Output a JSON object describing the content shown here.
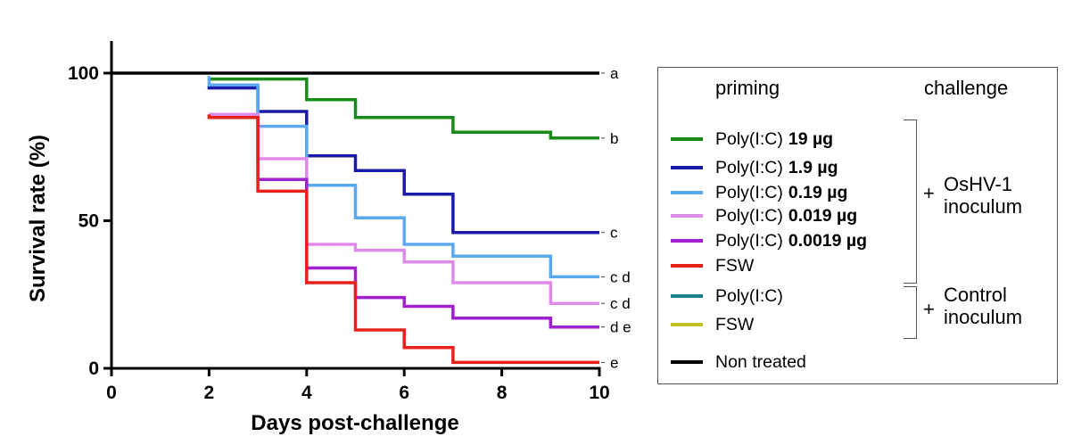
{
  "chart_data": {
    "type": "line",
    "step": true,
    "title": "",
    "xlabel": "Days post-challenge",
    "ylabel": "Survival rate (%)",
    "xlim": [
      0,
      10
    ],
    "ylim": [
      0,
      100
    ],
    "x_ticks": [
      "0",
      "2",
      "4",
      "6",
      "8",
      "10"
    ],
    "y_ticks": [
      "0",
      "50",
      "100"
    ],
    "grid": false,
    "legend_position": "right",
    "series": [
      {
        "color": "#000000",
        "group_letter": "a",
        "steps": [
          [
            0,
            100
          ],
          [
            10,
            100
          ]
        ]
      },
      {
        "color": "#1a8a1a",
        "group_letter": "b",
        "steps": [
          [
            2,
            98
          ],
          [
            4,
            98
          ],
          [
            4,
            91
          ],
          [
            5,
            91
          ],
          [
            5,
            85
          ],
          [
            7,
            85
          ],
          [
            7,
            80
          ],
          [
            9,
            80
          ],
          [
            9,
            78
          ],
          [
            10,
            78
          ]
        ]
      },
      {
        "color": "#1a1aa8",
        "group_letter": "c",
        "steps": [
          [
            2,
            96
          ],
          [
            2,
            95
          ],
          [
            3,
            95
          ],
          [
            3,
            87
          ],
          [
            4,
            87
          ],
          [
            4,
            72
          ],
          [
            5,
            72
          ],
          [
            5,
            67
          ],
          [
            6,
            67
          ],
          [
            6,
            59
          ],
          [
            7,
            59
          ],
          [
            7,
            46
          ],
          [
            10,
            46
          ]
        ]
      },
      {
        "color": "#5aa8f0",
        "group_letter": "c d",
        "steps": [
          [
            2,
            99
          ],
          [
            2,
            96
          ],
          [
            3,
            96
          ],
          [
            3,
            82
          ],
          [
            4,
            82
          ],
          [
            4,
            62
          ],
          [
            5,
            62
          ],
          [
            5,
            51
          ],
          [
            6,
            51
          ],
          [
            6,
            42
          ],
          [
            7,
            42
          ],
          [
            7,
            38
          ],
          [
            9,
            38
          ],
          [
            9,
            31
          ],
          [
            10,
            31
          ]
        ]
      },
      {
        "color": "#e08ae8",
        "group_letter": "c d",
        "steps": [
          [
            2,
            86
          ],
          [
            3,
            86
          ],
          [
            3,
            71
          ],
          [
            4,
            71
          ],
          [
            4,
            42
          ],
          [
            5,
            42
          ],
          [
            5,
            40
          ],
          [
            6,
            40
          ],
          [
            6,
            36
          ],
          [
            7,
            36
          ],
          [
            7,
            29
          ],
          [
            9,
            29
          ],
          [
            9,
            22
          ],
          [
            10,
            22
          ]
        ]
      },
      {
        "color": "#a020d0",
        "group_letter": "d e",
        "steps": [
          [
            2,
            85
          ],
          [
            3,
            85
          ],
          [
            3,
            64
          ],
          [
            4,
            64
          ],
          [
            4,
            34
          ],
          [
            5,
            34
          ],
          [
            5,
            24
          ],
          [
            6,
            24
          ],
          [
            6,
            21
          ],
          [
            7,
            21
          ],
          [
            7,
            17
          ],
          [
            9,
            17
          ],
          [
            9,
            14
          ],
          [
            10,
            14
          ]
        ]
      },
      {
        "color": "#e8201a",
        "group_letter": "e",
        "steps": [
          [
            2,
            86
          ],
          [
            2,
            85
          ],
          [
            3,
            85
          ],
          [
            3,
            60
          ],
          [
            4,
            60
          ],
          [
            4,
            29
          ],
          [
            5,
            29
          ],
          [
            5,
            13
          ],
          [
            6,
            13
          ],
          [
            6,
            7
          ],
          [
            7,
            7
          ],
          [
            7,
            2
          ],
          [
            10,
            2
          ]
        ]
      }
    ]
  },
  "legend": {
    "priming_header": "priming",
    "challenge_header": "challenge",
    "items": [
      {
        "name": "Poly(I:C)",
        "dose": "19 µg",
        "color": "#1a8a1a"
      },
      {
        "name": "Poly(I:C)",
        "dose": "1.9 µg",
        "color": "#1a1aa8"
      },
      {
        "name": "Poly(I:C)",
        "dose": "0.19 µg",
        "color": "#5aa8f0"
      },
      {
        "name": "Poly(I:C)",
        "dose": "0.019 µg",
        "color": "#e08ae8"
      },
      {
        "name": "Poly(I:C)",
        "dose": "0.0019 µg",
        "color": "#a020d0"
      },
      {
        "name": "FSW",
        "dose": "",
        "color": "#e8201a"
      },
      {
        "name": "Poly(I:C)",
        "dose": "",
        "color": "#1a7f8f"
      },
      {
        "name": "FSW",
        "dose": "",
        "color": "#c0c020"
      },
      {
        "name": "Non treated",
        "dose": "",
        "color": "#000000"
      }
    ],
    "osHV_plus": "+",
    "osHV_line1": "OsHV-1",
    "osHV_line2": "inoculum",
    "control_plus": "+",
    "control_line1": "Control",
    "control_line2": "inoculum"
  }
}
